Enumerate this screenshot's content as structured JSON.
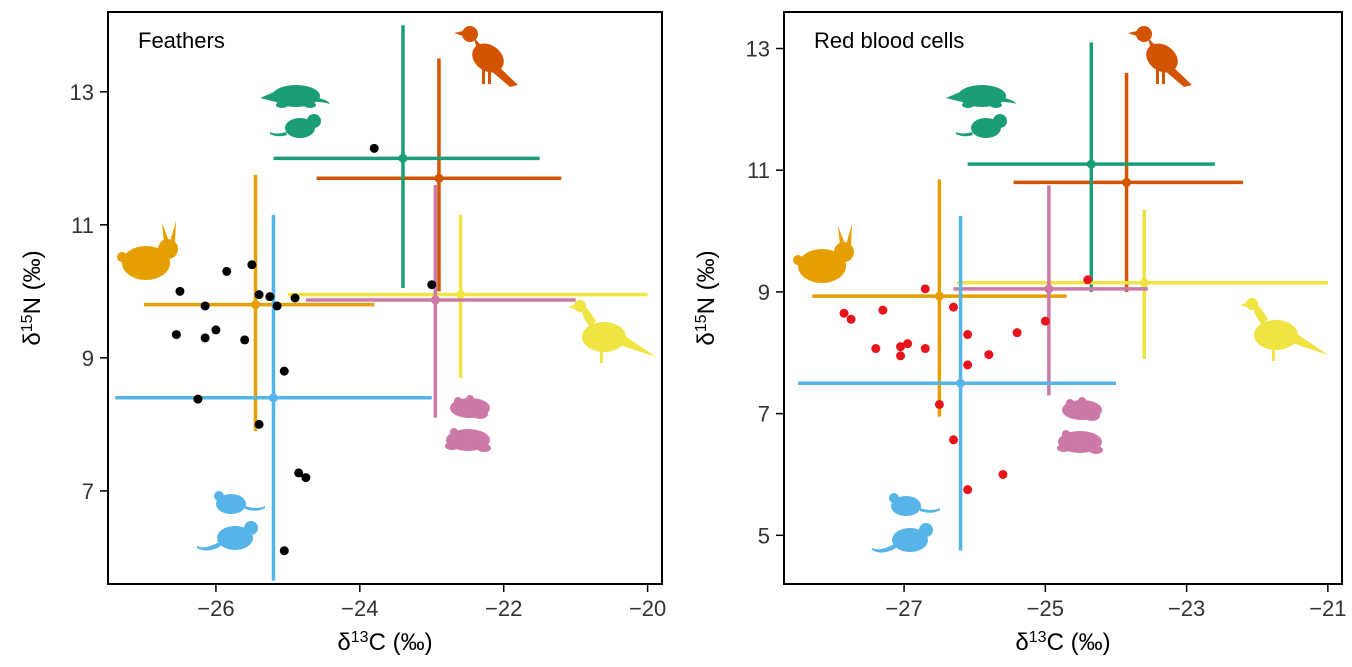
{
  "chart_data": [
    {
      "type": "scatter",
      "title": "Feathers",
      "xlabel": "δ13C (‰)",
      "ylabel": "δ15N (‰)",
      "xlim": [
        -27.5,
        -19.8
      ],
      "ylim": [
        5.6,
        14.2
      ],
      "xticks": [
        -26,
        -24,
        -22,
        -20
      ],
      "yticks": [
        7,
        9,
        11,
        13
      ],
      "xtick_labels": [
        "−26",
        "−24",
        "−22",
        "−20"
      ],
      "ytick_labels": [
        "7",
        "9",
        "11",
        "13"
      ],
      "grid": false,
      "point_color": "#000000",
      "points": [
        {
          "x": -23.8,
          "y": 12.15
        },
        {
          "x": -26.5,
          "y": 10.0
        },
        {
          "x": -25.85,
          "y": 10.3
        },
        {
          "x": -25.5,
          "y": 10.4
        },
        {
          "x": -26.15,
          "y": 9.78
        },
        {
          "x": -25.4,
          "y": 9.95
        },
        {
          "x": -25.25,
          "y": 9.92
        },
        {
          "x": -25.15,
          "y": 9.78
        },
        {
          "x": -24.9,
          "y": 9.9
        },
        {
          "x": -23.0,
          "y": 10.1
        },
        {
          "x": -26.55,
          "y": 9.35
        },
        {
          "x": -26.15,
          "y": 9.3
        },
        {
          "x": -26.0,
          "y": 9.42
        },
        {
          "x": -25.6,
          "y": 9.27
        },
        {
          "x": -25.05,
          "y": 8.8
        },
        {
          "x": -26.25,
          "y": 8.38
        },
        {
          "x": -25.4,
          "y": 8.0
        },
        {
          "x": -24.85,
          "y": 7.27
        },
        {
          "x": -24.75,
          "y": 7.2
        },
        {
          "x": -25.05,
          "y": 6.1
        }
      ],
      "series": [
        {
          "name": "",
          "icon": "bird-icon",
          "color": "#d35400",
          "x": -22.9,
          "y": 11.7,
          "xmin": -24.6,
          "xmax": -21.2,
          "ymin": 10.0,
          "ymax": 13.5
        },
        {
          "name": "",
          "icon": "mole-vole-icon",
          "color": "#1b9e77",
          "x": -23.4,
          "y": 12.0,
          "xmin": -25.2,
          "xmax": -21.5,
          "ymin": 10.05,
          "ymax": 14.0
        },
        {
          "name": "",
          "icon": "rabbit-icon",
          "color": "#e69f00",
          "x": -25.45,
          "y": 9.8,
          "xmin": -27.0,
          "xmax": -23.8,
          "ymin": 7.9,
          "ymax": 11.75
        },
        {
          "name": "",
          "icon": "pheasant-icon",
          "color": "#f0e442",
          "x": -22.6,
          "y": 9.95,
          "xmin": -25.0,
          "xmax": -20.0,
          "ymin": 8.7,
          "ymax": 11.15
        },
        {
          "name": "",
          "icon": "frog-icon",
          "color": "#cc79a7",
          "x": -22.95,
          "y": 9.87,
          "xmin": -24.75,
          "xmax": -21.0,
          "ymin": 8.1,
          "ymax": 11.6
        },
        {
          "name": "",
          "icon": "mouse-icon",
          "color": "#56b4e9",
          "x": -25.2,
          "y": 8.4,
          "xmin": -27.4,
          "xmax": -23.0,
          "ymin": 5.65,
          "ymax": 11.15
        }
      ]
    },
    {
      "type": "scatter",
      "title": "Red blood cells",
      "xlabel": "δ13C (‰)",
      "ylabel": "δ15N (‰)",
      "xlim": [
        -28.7,
        -20.8
      ],
      "ylim": [
        4.2,
        13.6
      ],
      "xticks": [
        -27,
        -25,
        -23,
        -21
      ],
      "yticks": [
        5,
        7,
        9,
        11,
        13
      ],
      "xtick_labels": [
        "−27",
        "−25",
        "−23",
        "−21"
      ],
      "ytick_labels": [
        "5",
        "7",
        "9",
        "11",
        "13"
      ],
      "grid": false,
      "point_color": "#e8141b",
      "points": [
        {
          "x": -24.4,
          "y": 9.2
        },
        {
          "x": -26.7,
          "y": 9.05
        },
        {
          "x": -27.85,
          "y": 8.65
        },
        {
          "x": -27.75,
          "y": 8.55
        },
        {
          "x": -27.3,
          "y": 8.7
        },
        {
          "x": -26.3,
          "y": 8.75
        },
        {
          "x": -25.0,
          "y": 8.52
        },
        {
          "x": -25.4,
          "y": 8.33
        },
        {
          "x": -26.1,
          "y": 8.3
        },
        {
          "x": -27.4,
          "y": 8.07
        },
        {
          "x": -27.05,
          "y": 8.1
        },
        {
          "x": -26.95,
          "y": 8.15
        },
        {
          "x": -26.7,
          "y": 8.07
        },
        {
          "x": -27.05,
          "y": 7.95
        },
        {
          "x": -25.8,
          "y": 7.97
        },
        {
          "x": -26.1,
          "y": 7.8
        },
        {
          "x": -26.5,
          "y": 7.15
        },
        {
          "x": -26.3,
          "y": 6.57
        },
        {
          "x": -25.6,
          "y": 6.0
        },
        {
          "x": -26.1,
          "y": 5.75
        }
      ],
      "series": [
        {
          "name": "",
          "icon": "bird-icon",
          "color": "#d35400",
          "x": -23.85,
          "y": 10.8,
          "xmin": -25.45,
          "xmax": -22.2,
          "ymin": 9.0,
          "ymax": 12.6
        },
        {
          "name": "",
          "icon": "mole-vole-icon",
          "color": "#1b9e77",
          "x": -24.35,
          "y": 11.1,
          "xmin": -26.1,
          "xmax": -22.6,
          "ymin": 9.0,
          "ymax": 13.1
        },
        {
          "name": "",
          "icon": "rabbit-icon",
          "color": "#e69f00",
          "x": -26.5,
          "y": 8.93,
          "xmin": -28.3,
          "xmax": -24.7,
          "ymin": 6.95,
          "ymax": 10.85
        },
        {
          "name": "",
          "icon": "pheasant-icon",
          "color": "#f0e442",
          "x": -23.6,
          "y": 9.15,
          "xmin": -26.25,
          "xmax": -21.0,
          "ymin": 7.9,
          "ymax": 10.35
        },
        {
          "name": "",
          "icon": "frog-icon",
          "color": "#cc79a7",
          "x": -24.95,
          "y": 9.05,
          "xmin": -26.3,
          "xmax": -23.55,
          "ymin": 7.3,
          "ymax": 10.75
        },
        {
          "name": "",
          "icon": "mouse-icon",
          "color": "#56b4e9",
          "x": -26.2,
          "y": 7.5,
          "xmin": -28.5,
          "xmax": -24.0,
          "ymin": 4.75,
          "ymax": 10.25
        }
      ]
    }
  ]
}
